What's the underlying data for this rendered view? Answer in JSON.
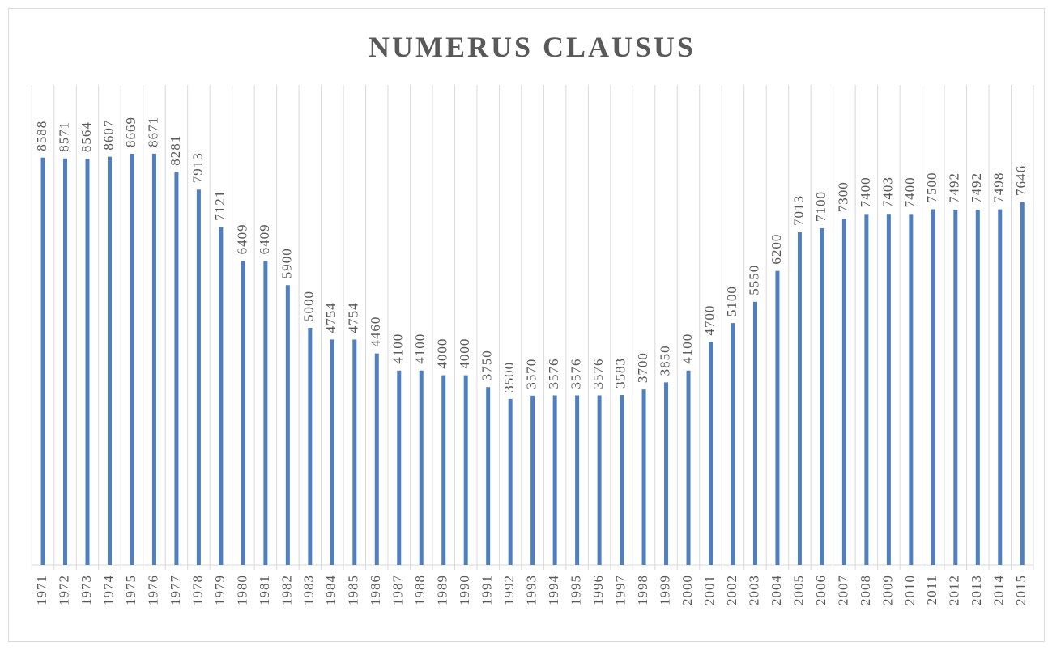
{
  "chart_data": {
    "type": "bar",
    "title": "NUMERUS CLAUSUS",
    "categories": [
      "1971",
      "1972",
      "1973",
      "1974",
      "1975",
      "1976",
      "1977",
      "1978",
      "1979",
      "1980",
      "1981",
      "1982",
      "1983",
      "1984",
      "1985",
      "1986",
      "1987",
      "1988",
      "1989",
      "1990",
      "1991",
      "1992",
      "1993",
      "1994",
      "1995",
      "1996",
      "1997",
      "1998",
      "1999",
      "2000",
      "2001",
      "2002",
      "2003",
      "2004",
      "2005",
      "2006",
      "2007",
      "2008",
      "2009",
      "2010",
      "2011",
      "2012",
      "2013",
      "2014",
      "2015"
    ],
    "values": [
      8588,
      8571,
      8564,
      8607,
      8669,
      8671,
      8281,
      7913,
      7121,
      6409,
      6409,
      5900,
      5000,
      4754,
      4754,
      4460,
      4100,
      4100,
      4000,
      4000,
      3750,
      3500,
      3570,
      3576,
      3576,
      3576,
      3583,
      3700,
      3850,
      4100,
      4700,
      5100,
      5550,
      6200,
      7013,
      7100,
      7300,
      7400,
      7403,
      7400,
      7500,
      7492,
      7492,
      7498,
      7646
    ],
    "color": "#4f7fbf",
    "ylim": [
      0,
      10000
    ]
  }
}
